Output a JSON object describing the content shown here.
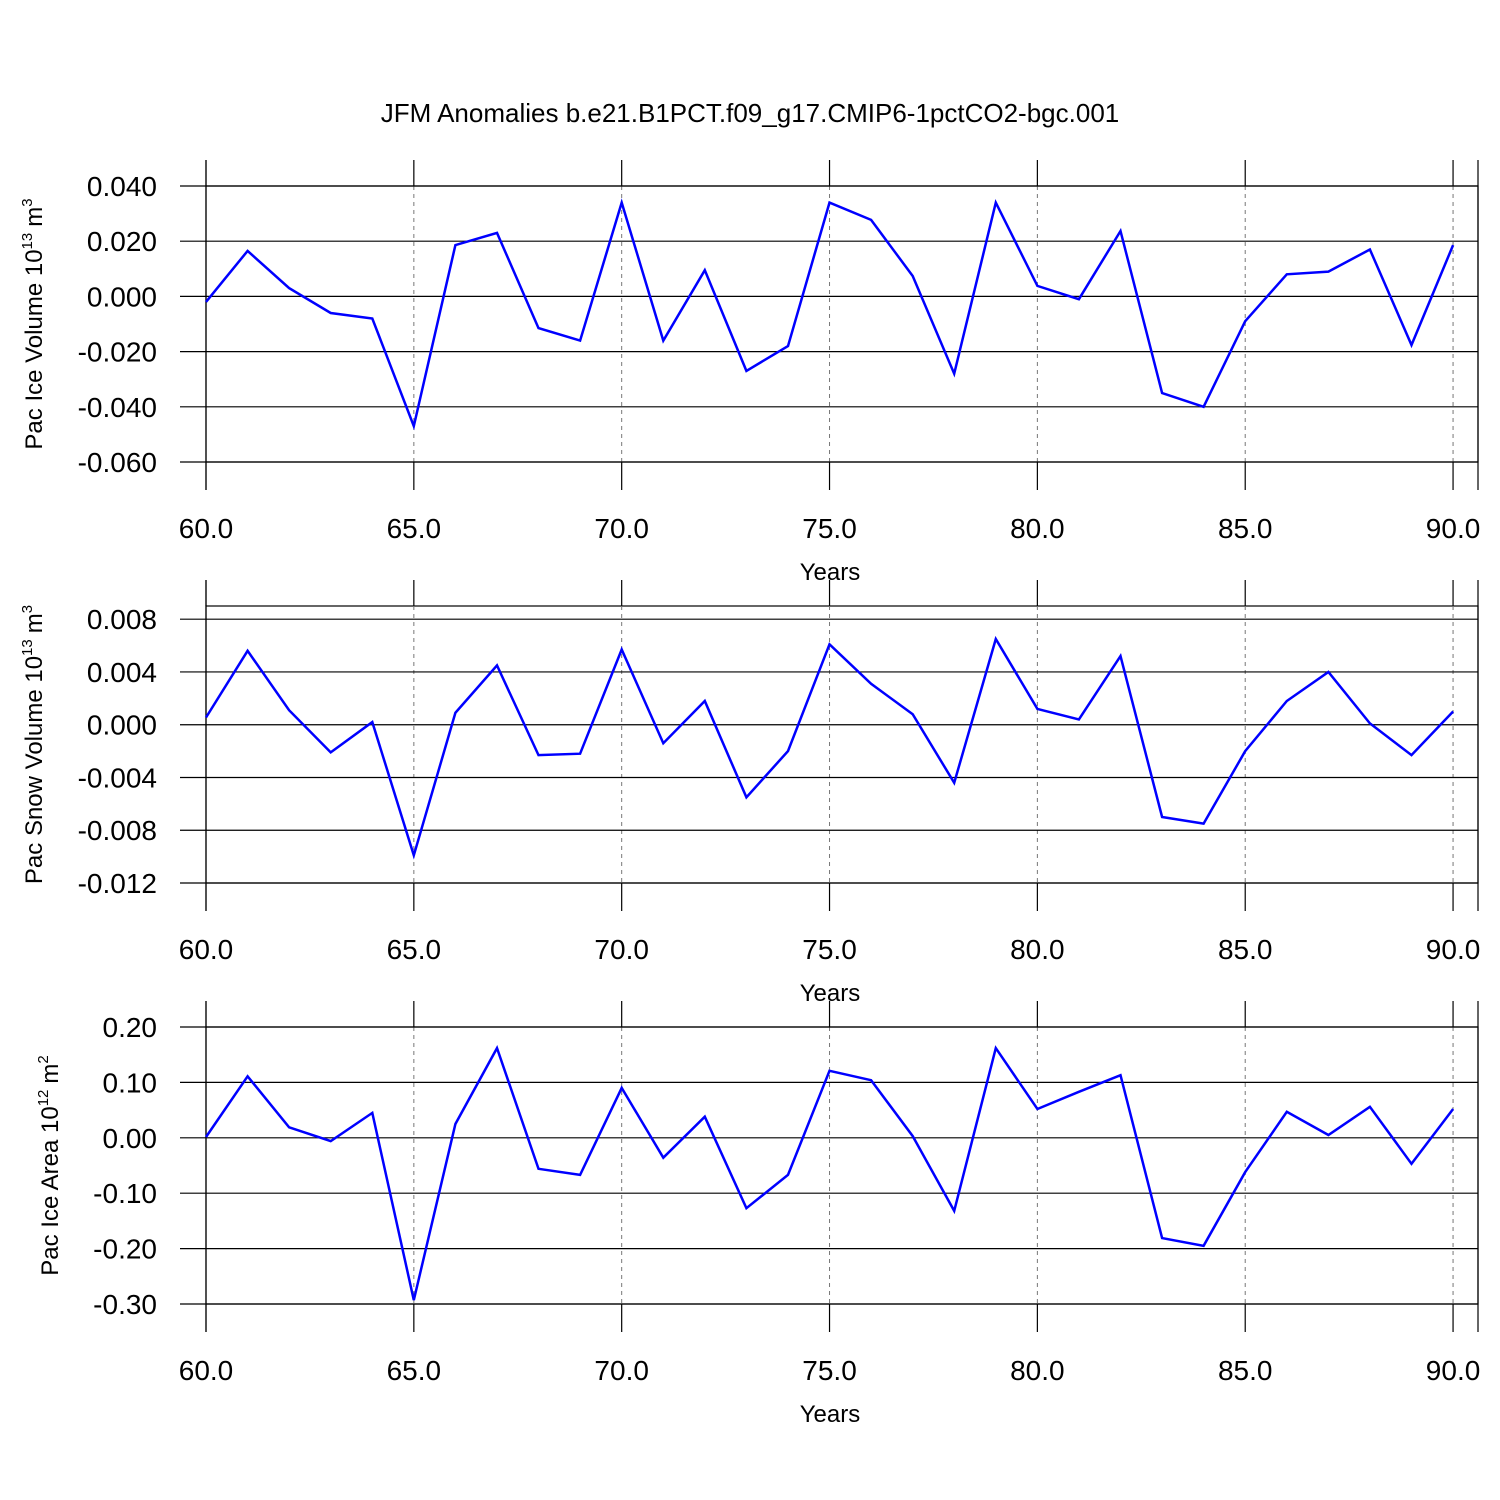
{
  "chart_data": [
    {
      "type": "line",
      "title": "JFM Anomalies b.e21.B1PCT.f09_g17.CMIP6-1pctCO2-bgc.001",
      "xlabel": "Years",
      "ylabel": [
        "Pac Ice Volume 10",
        "13",
        "m",
        "3"
      ],
      "x": [
        60,
        61,
        62,
        63,
        64,
        65,
        66,
        67,
        68,
        69,
        70,
        71,
        72,
        73,
        74,
        75,
        76,
        77,
        78,
        79,
        80,
        81,
        82,
        83,
        84,
        85,
        86,
        87,
        88,
        89,
        90
      ],
      "series": [
        {
          "color": "#0000ff",
          "values": [
            -0.002,
            0.0165,
            0.003,
            -0.006,
            -0.008,
            -0.047,
            0.0186,
            0.023,
            -0.0115,
            -0.016,
            0.034,
            -0.016,
            0.0095,
            -0.027,
            -0.018,
            0.034,
            0.0277,
            0.0074,
            -0.028,
            0.034,
            0.0038,
            -0.001,
            0.0237,
            -0.035,
            -0.04,
            -0.009,
            0.008,
            0.009,
            0.017,
            -0.0176,
            0.0186
          ]
        }
      ],
      "xlim": [
        60,
        90.6
      ],
      "ylim": [
        -0.06,
        0.04
      ],
      "xticks": [
        {
          "value": 60,
          "label": "60.0"
        },
        {
          "value": 65,
          "label": "65.0"
        },
        {
          "value": 70,
          "label": "70.0"
        },
        {
          "value": 75,
          "label": "75.0"
        },
        {
          "value": 80,
          "label": "80.0"
        },
        {
          "value": 85,
          "label": "85.0"
        },
        {
          "value": 90,
          "label": "90.0"
        }
      ],
      "yticks": [
        {
          "value": 0.04,
          "label": "0.040"
        },
        {
          "value": 0.02,
          "label": "0.020"
        },
        {
          "value": 0,
          "label": "0.000"
        },
        {
          "value": -0.02,
          "label": "-0.020"
        },
        {
          "value": -0.04,
          "label": "-0.040"
        },
        {
          "value": -0.06,
          "label": "-0.060"
        }
      ],
      "grid": "x"
    },
    {
      "type": "line",
      "xlabel": "Years",
      "ylabel": [
        "Pac Snow Volume 10",
        "13",
        "m",
        "3"
      ],
      "x": [
        60,
        61,
        62,
        63,
        64,
        65,
        66,
        67,
        68,
        69,
        70,
        71,
        72,
        73,
        74,
        75,
        76,
        77,
        78,
        79,
        80,
        81,
        82,
        83,
        84,
        85,
        86,
        87,
        88,
        89,
        90
      ],
      "series": [
        {
          "color": "#0000ff",
          "values": [
            0.00055,
            0.0056,
            0.0011,
            -0.0021,
            0.0002,
            -0.0099,
            0.0009,
            0.0045,
            -0.0023,
            -0.0022,
            0.0057,
            -0.0014,
            0.0018,
            -0.0055,
            -0.002,
            0.0061,
            0.0031,
            0.0008,
            -0.0044,
            0.0065,
            0.0012,
            0.0004,
            0.0052,
            -0.007,
            -0.0075,
            -0.002,
            0.0018,
            0.004,
            0.0001,
            -0.0023,
            0.001
          ]
        }
      ],
      "xlim": [
        60,
        90.6
      ],
      "ylim": [
        -0.012,
        0.009
      ],
      "xticks": [
        {
          "value": 60,
          "label": "60.0"
        },
        {
          "value": 65,
          "label": "65.0"
        },
        {
          "value": 70,
          "label": "70.0"
        },
        {
          "value": 75,
          "label": "75.0"
        },
        {
          "value": 80,
          "label": "80.0"
        },
        {
          "value": 85,
          "label": "85.0"
        },
        {
          "value": 90,
          "label": "90.0"
        }
      ],
      "yticks": [
        {
          "value": 0.008,
          "label": "0.008"
        },
        {
          "value": 0.004,
          "label": "0.004"
        },
        {
          "value": 0,
          "label": "0.000"
        },
        {
          "value": -0.004,
          "label": "-0.004"
        },
        {
          "value": -0.008,
          "label": "-0.008"
        },
        {
          "value": -0.012,
          "label": "-0.012"
        }
      ],
      "grid": "x"
    },
    {
      "type": "line",
      "xlabel": "Years",
      "ylabel": [
        "Pac Ice Area 10",
        "12",
        "m",
        "2"
      ],
      "x": [
        60,
        61,
        62,
        63,
        64,
        65,
        66,
        67,
        68,
        69,
        70,
        71,
        72,
        73,
        74,
        75,
        76,
        77,
        78,
        79,
        80,
        81,
        82,
        83,
        84,
        85,
        86,
        87,
        88,
        89,
        90
      ],
      "series": [
        {
          "color": "#0000ff",
          "values": [
            0.0014,
            0.111,
            0.019,
            -0.006,
            0.045,
            -0.293,
            0.025,
            0.162,
            -0.056,
            -0.067,
            0.09,
            -0.036,
            0.038,
            -0.127,
            -0.067,
            0.121,
            0.104,
            0.003,
            -0.132,
            0.162,
            0.052,
            0.083,
            0.113,
            -0.181,
            -0.195,
            -0.062,
            0.047,
            0.005,
            0.056,
            -0.047,
            0.052
          ]
        }
      ],
      "xlim": [
        60,
        90.6
      ],
      "ylim": [
        -0.3,
        0.2
      ],
      "xticks": [
        {
          "value": 60,
          "label": "60.0"
        },
        {
          "value": 65,
          "label": "65.0"
        },
        {
          "value": 70,
          "label": "70.0"
        },
        {
          "value": 75,
          "label": "75.0"
        },
        {
          "value": 80,
          "label": "80.0"
        },
        {
          "value": 85,
          "label": "85.0"
        },
        {
          "value": 90,
          "label": "90.0"
        }
      ],
      "yticks": [
        {
          "value": 0.2,
          "label": "0.20"
        },
        {
          "value": 0.1,
          "label": "0.10"
        },
        {
          "value": 0,
          "label": "0.00"
        },
        {
          "value": -0.1,
          "label": "-0.10"
        },
        {
          "value": -0.2,
          "label": "-0.20"
        },
        {
          "value": -0.3,
          "label": "-0.30"
        }
      ],
      "grid": "x"
    }
  ]
}
